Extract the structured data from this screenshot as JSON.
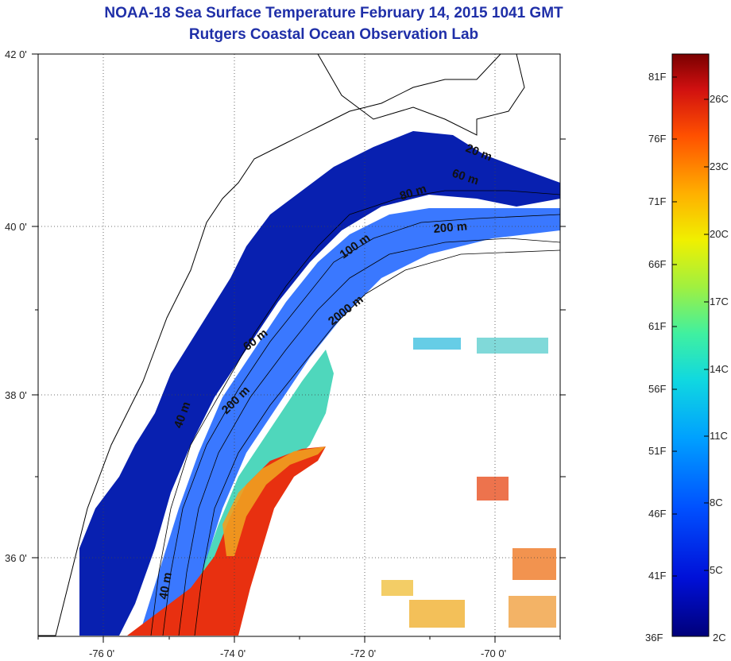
{
  "header": {
    "title_line1": "NOAA-18 Sea Surface Temperature February 14, 2015 1041 GMT",
    "title_line2": "Rutgers Coastal Ocean Observation Lab"
  },
  "axes": {
    "lat_labels": [
      "42 0'",
      "40 0'",
      "38 0'",
      "36 0'"
    ],
    "lon_labels": [
      "-76 0'",
      "-74 0'",
      "-72 0'",
      "-70 0'"
    ]
  },
  "contours": {
    "labels": [
      "20 m",
      "60 m",
      "80 m",
      "200 m",
      "100 m",
      "2000 m",
      "60 m",
      "200 m",
      "40 m",
      "40 m"
    ]
  },
  "colorbar": {
    "fahrenheit": [
      "81F",
      "76F",
      "71F",
      "66F",
      "61F",
      "56F",
      "51F",
      "46F",
      "41F",
      "36F"
    ],
    "celsius": [
      "26C",
      "23C",
      "20C",
      "17C",
      "14C",
      "11C",
      "8C",
      "5C",
      "2C"
    ]
  },
  "colors": {
    "land": "#ffffff",
    "cold": "#0a1a9a",
    "warm": "#e83010",
    "title": "#1f2fa8"
  }
}
